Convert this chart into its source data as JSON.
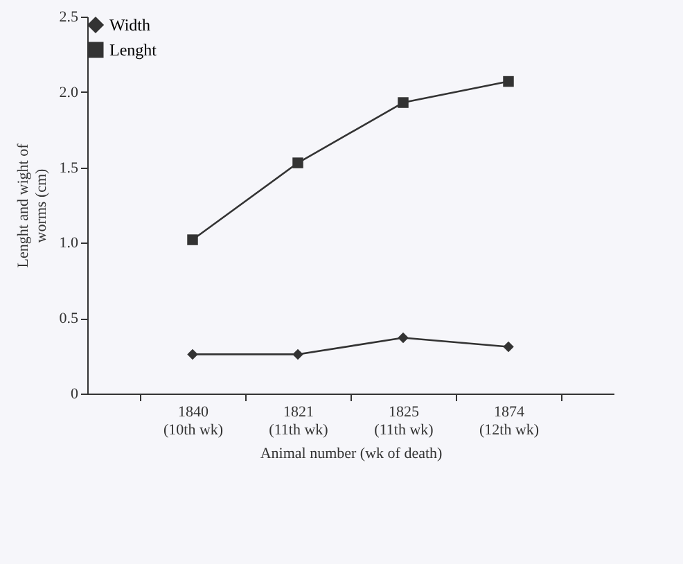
{
  "chart_data": {
    "type": "line",
    "xlabel": "Animal number (wk of death)",
    "ylabel": "Lenght and wight of\nworms (cm)",
    "categories": [
      "1840\n(10th wk)",
      "1821\n(11th wk)",
      "1825\n(11th wk)",
      "1874\n(12th wk)"
    ],
    "series": [
      {
        "name": "Width",
        "color": "#333333",
        "marker": "diamond",
        "values": [
          0.26,
          0.26,
          0.37,
          0.31
        ]
      },
      {
        "name": "Lenght",
        "color": "#333333",
        "marker": "square",
        "values": [
          1.02,
          1.53,
          1.93,
          2.07
        ]
      }
    ],
    "ylim": [
      0,
      2.5
    ],
    "yticks": [
      0,
      {
        "value": 0.5,
        "label": "0.5"
      },
      {
        "value": 1,
        "label": "1.0"
      },
      {
        "value": 1.5,
        "label": "1.5"
      },
      {
        "value": 2,
        "label": "2.0"
      },
      {
        "value": 2.5,
        "label": "2.5"
      }
    ],
    "grid": false,
    "legend": "top left",
    "line_style": "solid"
  }
}
